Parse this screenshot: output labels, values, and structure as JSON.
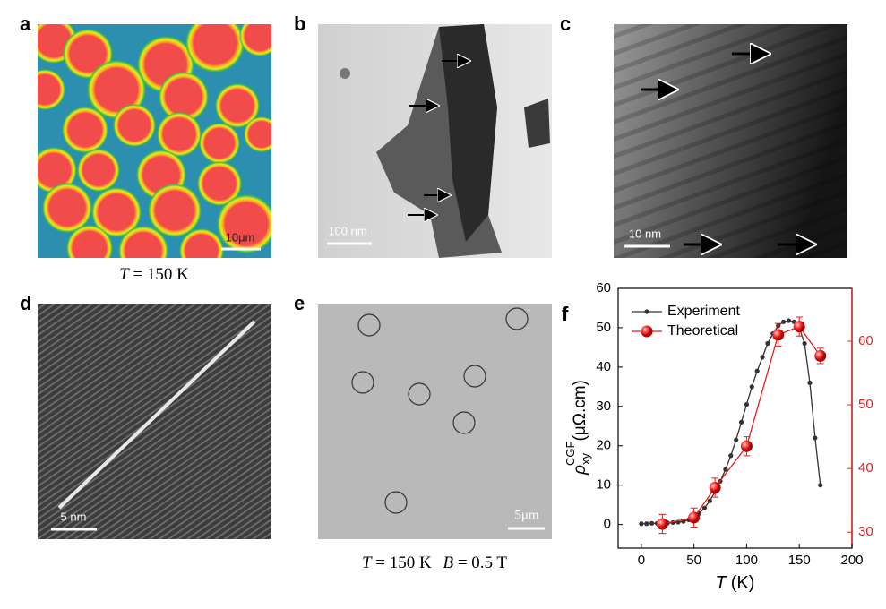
{
  "panels": {
    "a": {
      "label": "a",
      "scale_bar": "10μm",
      "caption": {
        "variable": "T",
        "text": "= 150 K"
      }
    },
    "b": {
      "label": "b",
      "scale_bar": "100 nm"
    },
    "c": {
      "label": "c",
      "scale_bar": "10 nm"
    },
    "d": {
      "label": "d",
      "scale_bar": "5 nm"
    },
    "e": {
      "label": "e",
      "scale_bar": "5μm",
      "caption": [
        {
          "variable": "T",
          "text": "= 150 K"
        },
        {
          "variable": "B",
          "text": "= 0.5 T"
        }
      ]
    },
    "f": {
      "label": "f"
    }
  },
  "chart_data": {
    "type": "line",
    "x_label": {
      "variable": "T",
      "unit": "(K)"
    },
    "y_label": {
      "symbol": "ρ",
      "subscript": "xy",
      "superscript": "CGF",
      "unit": "(μΩ.cm)"
    },
    "xlim": [
      -22,
      200
    ],
    "xticks": [
      0,
      50,
      100,
      150,
      200
    ],
    "ylim": [
      -6,
      60
    ],
    "yticks": [
      0,
      10,
      20,
      30,
      40,
      50,
      60
    ],
    "y2lim": [
      27.5,
      68.3
    ],
    "y2ticks": [
      30,
      40,
      50,
      60
    ],
    "y2_color": "#e02020",
    "legend": "upper left",
    "series": [
      {
        "name": "Experiment",
        "color": "#333333",
        "x": [
          0,
          5,
          10,
          15,
          20,
          25,
          30,
          35,
          40,
          45,
          50,
          55,
          60,
          65,
          70,
          75,
          80,
          85,
          90,
          95,
          100,
          105,
          110,
          115,
          120,
          125,
          130,
          135,
          140,
          145,
          150,
          155,
          160,
          165,
          170
        ],
        "values": [
          0.2,
          0.2,
          0.3,
          0.3,
          0.3,
          0.4,
          0.5,
          0.6,
          0.8,
          1.2,
          1.8,
          2.8,
          4.2,
          6,
          8.3,
          11,
          14,
          17.5,
          21.5,
          26,
          30.5,
          35,
          39,
          42.5,
          46,
          48.5,
          50.5,
          51.5,
          51.8,
          51.5,
          50,
          46,
          36,
          22,
          10
        ]
      },
      {
        "name": "Theoretical",
        "color": "#e02020",
        "axis": "y2",
        "x": [
          20,
          50,
          70,
          100,
          130,
          150,
          170
        ],
        "values": [
          31.3,
          32.3,
          37,
          43.5,
          61,
          62.3,
          57.7
        ],
        "errors": [
          1.5,
          1.5,
          1.5,
          1.5,
          1.8,
          1.5,
          1.2
        ]
      }
    ]
  }
}
